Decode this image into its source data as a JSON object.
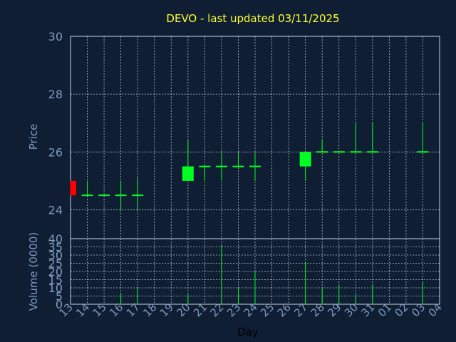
{
  "chart_data": {
    "type": "candlestick",
    "title": "DEVO - last updated 03/11/2025",
    "xlabel": "Day",
    "price_axis": {
      "label": "Price",
      "ylim": [
        23,
        30
      ],
      "ticks": [
        24,
        26,
        28,
        30
      ]
    },
    "volume_axis": {
      "label": "Volume (0000)",
      "ylim": [
        0,
        40
      ],
      "ticks": [
        0,
        5,
        10,
        15,
        20,
        25,
        30,
        35,
        40
      ]
    },
    "x_ticks": [
      "13",
      "14",
      "15",
      "16",
      "17",
      "18",
      "19",
      "20",
      "21",
      "22",
      "23",
      "24",
      "25",
      "26",
      "27",
      "28",
      "29",
      "30",
      "31",
      "01",
      "02",
      "03",
      "04"
    ],
    "grid": true,
    "up_color": "#00ff22",
    "down_color": "#ff0000",
    "background_color": "#0f1e32",
    "candles": [
      {
        "day": "13",
        "open": 25.0,
        "high": 25.0,
        "low": 24.5,
        "close": 24.5
      },
      {
        "day": "14",
        "open": 24.5,
        "high": 25.0,
        "low": 24.5,
        "close": 24.5
      },
      {
        "day": "15",
        "open": 24.5,
        "high": 24.5,
        "low": 24.5,
        "close": 24.5
      },
      {
        "day": "16",
        "open": 24.5,
        "high": 25.0,
        "low": 24.0,
        "close": 24.5
      },
      {
        "day": "17",
        "open": 24.5,
        "high": 25.1,
        "low": 24.0,
        "close": 24.5
      },
      {
        "day": "20",
        "open": 25.0,
        "high": 26.4,
        "low": 25.0,
        "close": 25.5
      },
      {
        "day": "21",
        "open": 25.5,
        "high": 25.5,
        "low": 25.0,
        "close": 25.5
      },
      {
        "day": "22",
        "open": 25.5,
        "high": 26.0,
        "low": 25.0,
        "close": 25.5
      },
      {
        "day": "23",
        "open": 25.5,
        "high": 26.0,
        "low": 25.5,
        "close": 25.5
      },
      {
        "day": "24",
        "open": 25.5,
        "high": 26.0,
        "low": 25.0,
        "close": 25.5
      },
      {
        "day": "27",
        "open": 25.5,
        "high": 26.0,
        "low": 25.0,
        "close": 26.0
      },
      {
        "day": "28",
        "open": 26.0,
        "high": 26.4,
        "low": 26.0,
        "close": 26.0
      },
      {
        "day": "29",
        "open": 26.0,
        "high": 26.0,
        "low": 26.0,
        "close": 26.0
      },
      {
        "day": "30",
        "open": 26.0,
        "high": 27.0,
        "low": 26.0,
        "close": 26.0
      },
      {
        "day": "31",
        "open": 26.0,
        "high": 27.0,
        "low": 26.0,
        "close": 26.0
      },
      {
        "day": "03",
        "open": 26.0,
        "high": 27.0,
        "low": 26.0,
        "close": 26.0
      }
    ],
    "volume": [
      {
        "day": "16",
        "value": 7
      },
      {
        "day": "17",
        "value": 10
      },
      {
        "day": "20",
        "value": 6
      },
      {
        "day": "22",
        "value": 36
      },
      {
        "day": "23",
        "value": 10
      },
      {
        "day": "24",
        "value": 20
      },
      {
        "day": "27",
        "value": 26
      },
      {
        "day": "28",
        "value": 10
      },
      {
        "day": "29",
        "value": 12
      },
      {
        "day": "30",
        "value": 6
      },
      {
        "day": "31",
        "value": 12
      },
      {
        "day": "03",
        "value": 13
      }
    ]
  }
}
